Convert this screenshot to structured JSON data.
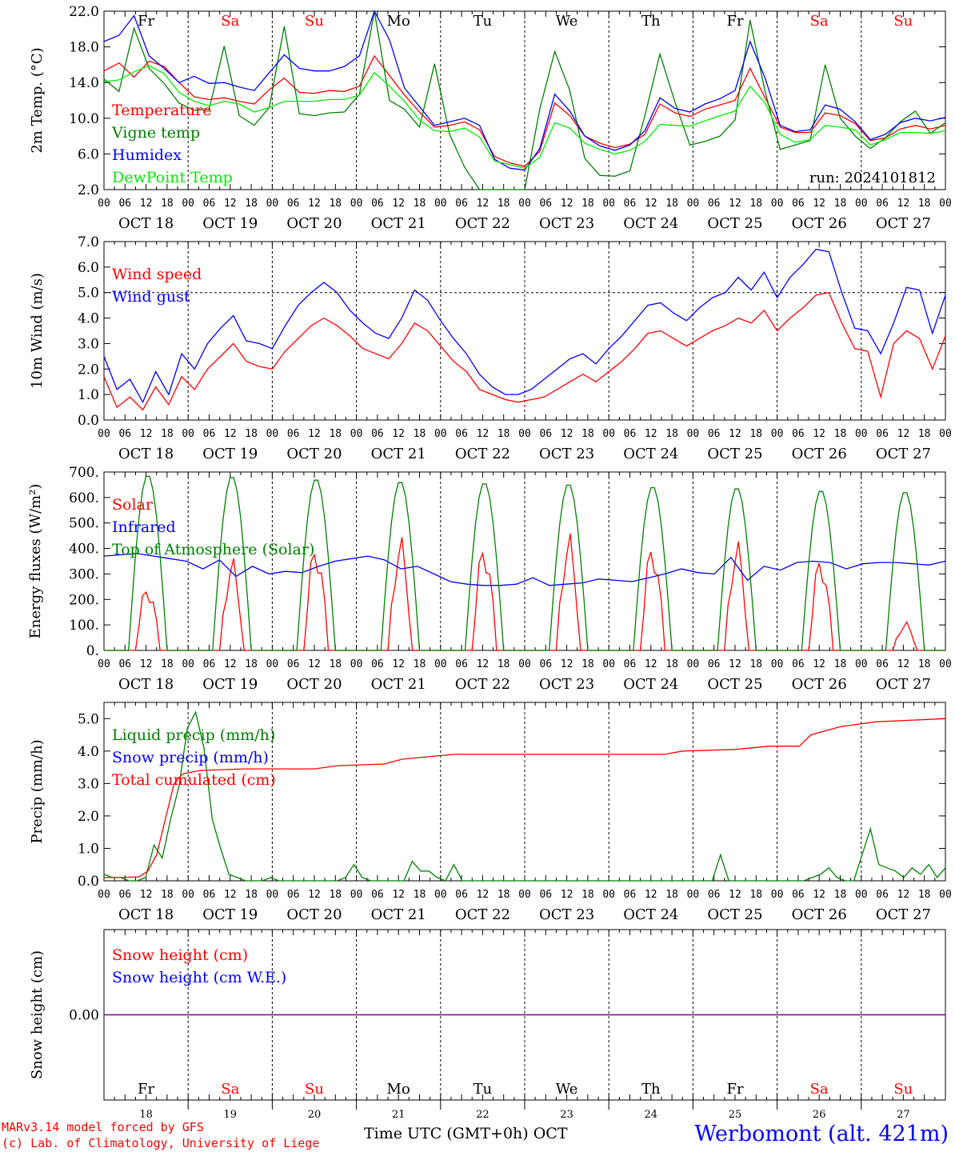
{
  "days": {
    "names": [
      "Fr",
      "Sa",
      "Su",
      "Mo",
      "Tu",
      "We",
      "Th",
      "Fr",
      "Sa",
      "Su"
    ],
    "weekend": [
      false,
      true,
      true,
      false,
      false,
      false,
      false,
      false,
      true,
      true
    ],
    "dates": [
      "OCT 18",
      "OCT 19",
      "OCT 20",
      "OCT 21",
      "OCT 22",
      "OCT 23",
      "OCT 24",
      "OCT 25",
      "OCT 26",
      "OCT 27"
    ],
    "day_numbers": [
      "18",
      "19",
      "20",
      "21",
      "22",
      "23",
      "24",
      "25",
      "26",
      "27"
    ],
    "hour_ticks": [
      "00",
      "06",
      "12",
      "18"
    ],
    "final_tick": "00"
  },
  "colors": {
    "red": "#ff0000",
    "green": "#008000",
    "blue": "#0000ff",
    "lightgreen": "#00ee00",
    "purple": "#800080",
    "axis": "#000000"
  },
  "footer": {
    "model": "MARv3.14 model forced by GFS",
    "credit": "(c) Lab. of Climatology, University of Liege",
    "axis_title": "Time UTC (GMT+0h) OCT",
    "station": "Werbomont (alt. 421m)"
  },
  "chart_data": [
    {
      "type": "line",
      "ylabel": "2m Temp. (°C)",
      "ylim": [
        2,
        22
      ],
      "yticks": [
        2,
        6,
        10,
        14,
        18,
        22
      ],
      "ytick_labels": [
        "2.0",
        "6.0",
        "10.0",
        "14.0",
        "18.0",
        "22.0"
      ],
      "run_label": "run: 2024101812",
      "x_hours_step": 6,
      "series": [
        {
          "name": "Temperature",
          "color": "red",
          "values": [
            15.3,
            16.2,
            14.6,
            16.4,
            15.8,
            14.0,
            12.4,
            12.1,
            12.3,
            11.9,
            11.6,
            13.2,
            14.5,
            12.9,
            12.8,
            13.1,
            13.0,
            13.6,
            17.0,
            14.8,
            12.6,
            10.7,
            9.0,
            9.2,
            9.6,
            8.7,
            5.7,
            5.0,
            4.6,
            6.3,
            11.7,
            10.3,
            8.0,
            7.2,
            6.7,
            7.1,
            8.2,
            11.6,
            10.6,
            10.2,
            11.0,
            11.5,
            12.0,
            15.6,
            12.3,
            9.0,
            8.4,
            8.4,
            10.6,
            10.3,
            9.4,
            7.5,
            7.8,
            8.8,
            9.2,
            8.8,
            9.2
          ]
        },
        {
          "name": "Vigne temp",
          "color": "green",
          "values": [
            14.4,
            13.0,
            20.1,
            15.6,
            13.9,
            11.7,
            10.9,
            11.0,
            18.1,
            10.3,
            9.2,
            11.2,
            20.3,
            10.5,
            10.3,
            10.6,
            10.7,
            12.7,
            22.0,
            12.0,
            11.0,
            9.0,
            16.1,
            8.2,
            4.5,
            1.5,
            1.5,
            1.5,
            1.2,
            11.0,
            17.5,
            13.1,
            5.5,
            3.6,
            3.5,
            4.1,
            10.3,
            17.2,
            11.8,
            7.0,
            7.4,
            8.0,
            9.8,
            21.0,
            13.0,
            6.5,
            7.0,
            7.5,
            16.0,
            10.0,
            8.0,
            6.6,
            7.8,
            9.6,
            10.8,
            8.3,
            9.5
          ]
        },
        {
          "name": "Humidex",
          "color": "blue",
          "values": [
            18.6,
            19.3,
            21.5,
            17.0,
            15.6,
            14.0,
            14.7,
            13.9,
            14.0,
            13.5,
            13.1,
            15.1,
            17.1,
            15.6,
            15.3,
            15.3,
            15.8,
            17.0,
            22.4,
            18.8,
            13.4,
            11.3,
            9.2,
            9.6,
            10.0,
            9.2,
            5.4,
            4.4,
            4.2,
            6.6,
            12.7,
            10.8,
            8.0,
            6.9,
            6.4,
            7.0,
            8.6,
            12.3,
            11.1,
            10.7,
            11.6,
            12.2,
            13.1,
            18.6,
            14.5,
            9.2,
            8.5,
            8.7,
            11.5,
            11.0,
            9.6,
            7.6,
            8.2,
            9.5,
            10.0,
            9.7,
            10.1
          ]
        },
        {
          "name": "DewPoint Temp",
          "color": "lightgreen",
          "values": [
            14.1,
            14.3,
            15.2,
            15.9,
            15.0,
            12.9,
            11.9,
            11.4,
            11.9,
            11.6,
            10.7,
            11.2,
            11.9,
            11.9,
            11.9,
            12.1,
            12.1,
            12.6,
            15.1,
            13.6,
            11.9,
            9.8,
            8.6,
            8.5,
            8.9,
            7.9,
            5.2,
            4.8,
            4.4,
            5.6,
            9.5,
            8.9,
            7.2,
            6.5,
            6.0,
            6.4,
            7.4,
            9.3,
            9.2,
            9.1,
            9.7,
            10.3,
            10.8,
            13.6,
            11.7,
            8.2,
            7.3,
            7.6,
            9.2,
            9.0,
            8.7,
            7.0,
            7.6,
            8.4,
            8.4,
            8.3,
            8.6
          ]
        }
      ]
    },
    {
      "type": "line",
      "ylabel": "10m Wind (m/s)",
      "ylim": [
        0,
        7
      ],
      "yticks": [
        0,
        1,
        2,
        3,
        4,
        5,
        6,
        7
      ],
      "ytick_labels": [
        "0.0",
        "1.0",
        "2.0",
        "3.0",
        "4.0",
        "5.0",
        "6.0",
        "7.0"
      ],
      "reference_line": 5.0,
      "series": [
        {
          "name": "Wind speed",
          "color": "red",
          "values": [
            1.7,
            0.5,
            0.9,
            0.4,
            1.3,
            0.6,
            1.7,
            1.2,
            2.0,
            2.5,
            3.0,
            2.3,
            2.1,
            2.0,
            2.7,
            3.2,
            3.7,
            4.0,
            3.7,
            3.3,
            2.8,
            2.6,
            2.4,
            3.0,
            3.8,
            3.5,
            2.9,
            2.3,
            1.9,
            1.2,
            1.0,
            0.8,
            0.7,
            0.8,
            0.9,
            1.2,
            1.5,
            1.8,
            1.5,
            1.9,
            2.3,
            2.8,
            3.4,
            3.5,
            3.2,
            2.9,
            3.2,
            3.5,
            3.7,
            4.0,
            3.8,
            4.3,
            3.5,
            4.0,
            4.4,
            4.9,
            5.0,
            3.8,
            2.8,
            2.7,
            0.9,
            3.0,
            3.5,
            3.2,
            2.0,
            3.3
          ]
        },
        {
          "name": "Wind gust",
          "color": "blue",
          "values": [
            2.5,
            1.2,
            1.6,
            0.7,
            1.9,
            1.0,
            2.6,
            2.0,
            3.0,
            3.6,
            4.1,
            3.1,
            3.0,
            2.8,
            3.7,
            4.5,
            5.0,
            5.4,
            5.0,
            4.3,
            3.8,
            3.4,
            3.2,
            4.0,
            5.1,
            4.7,
            3.9,
            3.2,
            2.6,
            1.8,
            1.3,
            1.0,
            1.0,
            1.2,
            1.6,
            2.0,
            2.4,
            2.6,
            2.2,
            2.8,
            3.3,
            3.9,
            4.5,
            4.6,
            4.2,
            3.9,
            4.4,
            4.8,
            5.0,
            5.6,
            5.1,
            5.8,
            4.8,
            5.6,
            6.1,
            6.7,
            6.6,
            5.0,
            3.6,
            3.5,
            2.6,
            3.8,
            5.2,
            5.1,
            3.4,
            4.9
          ]
        }
      ]
    },
    {
      "type": "line",
      "ylabel": "Energy fluxes (W/m²)",
      "ylim": [
        0,
        700
      ],
      "yticks": [
        0,
        100,
        200,
        300,
        400,
        500,
        600,
        700
      ],
      "ytick_labels": [
        "0.",
        "100.",
        "200.",
        "300.",
        "400.",
        "500.",
        "600.",
        "700."
      ],
      "series": [
        {
          "name": "Solar",
          "color": "red",
          "peaks": [
            275,
            370,
            445,
            455,
            445,
            470,
            445,
            440,
            390,
            115
          ]
        },
        {
          "name": "Infrared",
          "color": "blue",
          "values": [
            370,
            375,
            380,
            370,
            360,
            350,
            320,
            355,
            290,
            330,
            300,
            310,
            305,
            330,
            350,
            360,
            370,
            355,
            320,
            330,
            300,
            270,
            260,
            255,
            255,
            260,
            285,
            255,
            260,
            265,
            280,
            275,
            270,
            285,
            300,
            320,
            305,
            300,
            365,
            275,
            330,
            315,
            345,
            350,
            345,
            320,
            340,
            345,
            345,
            340,
            335,
            350
          ]
        },
        {
          "name": "Top of Atmosphere (Solar)",
          "color": "green",
          "peaks": [
            690,
            685,
            675,
            665,
            660,
            655,
            645,
            640,
            630,
            625
          ]
        }
      ]
    },
    {
      "type": "line",
      "ylabel": "Precip (mm/h)",
      "ylim": [
        0,
        5.5
      ],
      "yticks": [
        0,
        1,
        2,
        3,
        4,
        5
      ],
      "ytick_labels": [
        "0.0",
        "1.0",
        "2.0",
        "3.0",
        "4.0",
        "5.0"
      ],
      "series": [
        {
          "name": "Liquid precip (mm/h)",
          "color": "green",
          "values": [
            0.2,
            0.1,
            0.1,
            0.0,
            0.0,
            0.1,
            1.1,
            0.7,
            1.9,
            2.9,
            4.7,
            5.2,
            4.1,
            1.9,
            1.0,
            0.2,
            0.1,
            0.0,
            0.0,
            0.0,
            0.1,
            0.0,
            0.0,
            0.0,
            0.0,
            0.0,
            0.0,
            0.0,
            0.0,
            0.1,
            0.5,
            0.1,
            0.0,
            0.0,
            0.0,
            0.0,
            0.0,
            0.6,
            0.3,
            0.3,
            0.1,
            0.0,
            0.5,
            0.0,
            0.0,
            0.0,
            0.0,
            0.0,
            0.0,
            0.0,
            0.0,
            0.0,
            0.0,
            0.0,
            0.0,
            0.0,
            0.0,
            0.0,
            0.0,
            0.0,
            0.0,
            0.0,
            0.0,
            0.0,
            0.0,
            0.0,
            0.0,
            0.0,
            0.0,
            0.0,
            0.0,
            0.0,
            0.0,
            0.0,
            0.8,
            0.0,
            0.0,
            0.0,
            0.0,
            0.0,
            0.0,
            0.0,
            0.0,
            0.0,
            0.0,
            0.1,
            0.2,
            0.4,
            0.1,
            0.0,
            0.0,
            0.8,
            1.6,
            0.5,
            0.4,
            0.3,
            0.1,
            0.4,
            0.2,
            0.5,
            0.1,
            0.4
          ]
        },
        {
          "name": "Snow precip (mm/h)",
          "color": "blue",
          "values": [
            0,
            0
          ]
        },
        {
          "name": "Total cumulated (cm)",
          "color": "red",
          "cum_points": [
            [
              0,
              0.1
            ],
            [
              6,
              0.1
            ],
            [
              12,
              0.12
            ],
            [
              15,
              0.3
            ],
            [
              18,
              0.8
            ],
            [
              21,
              1.9
            ],
            [
              24,
              3.0
            ],
            [
              27,
              3.3
            ],
            [
              33,
              3.4
            ],
            [
              48,
              3.45
            ],
            [
              72,
              3.45
            ],
            [
              80,
              3.55
            ],
            [
              96,
              3.6
            ],
            [
              102,
              3.75
            ],
            [
              114,
              3.85
            ],
            [
              120,
              3.9
            ],
            [
              192,
              3.9
            ],
            [
              198,
              4.0
            ],
            [
              216,
              4.05
            ],
            [
              228,
              4.15
            ],
            [
              238,
              4.15
            ],
            [
              242,
              4.5
            ],
            [
              252,
              4.75
            ],
            [
              264,
              4.9
            ],
            [
              288,
              5.0
            ]
          ]
        }
      ]
    },
    {
      "type": "line",
      "ylabel": "Snow height (cm)",
      "ylim": [
        -1,
        1
      ],
      "yticks": [
        0
      ],
      "ytick_labels": [
        "0.00"
      ],
      "series": [
        {
          "name": "Snow height (cm)",
          "color": "red",
          "values": [
            0,
            0
          ]
        },
        {
          "name": "Snow height (cm W.E.)",
          "color": "blue",
          "values": [
            0,
            0
          ]
        }
      ]
    }
  ]
}
